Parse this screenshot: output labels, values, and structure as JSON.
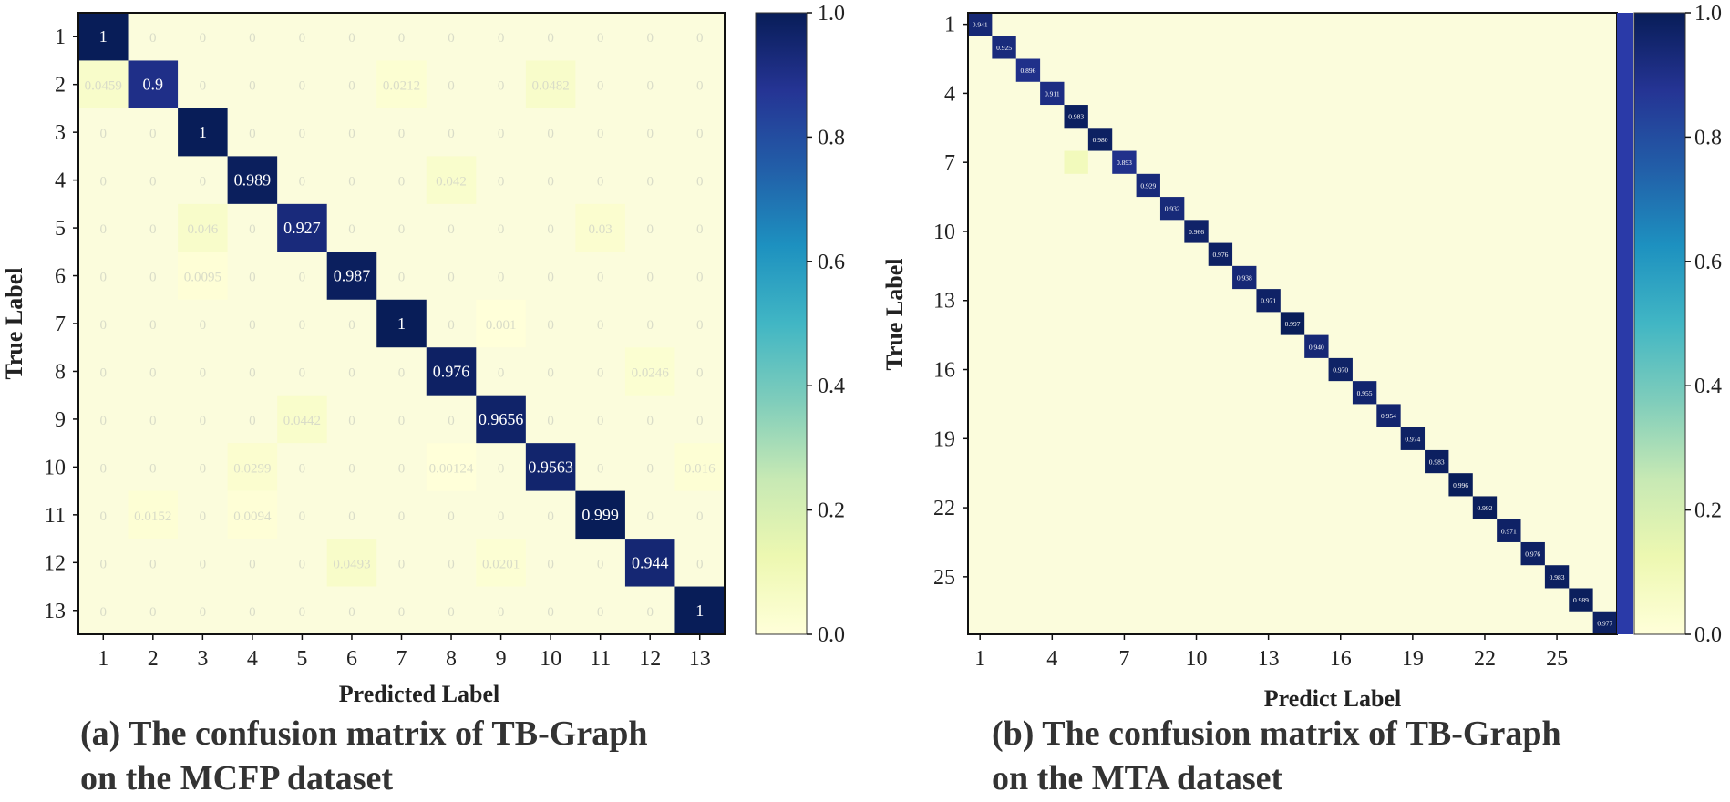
{
  "colors": {
    "low": "#fbfcdc",
    "scale": [
      "#ffffd9",
      "#edf8b1",
      "#c7e9b4",
      "#7fcdbb",
      "#41b6c4",
      "#1d91c0",
      "#225ea8",
      "#253494",
      "#081d58"
    ],
    "high_text": "#ffffff",
    "low_text": "#d9dcc8"
  },
  "chart_data": [
    {
      "type": "heatmap",
      "caption_line1": "(a) The confusion matrix of TB-Graph",
      "caption_line2": "on the MCFP dataset",
      "xlabel": "Predicted Label",
      "ylabel": "True Label",
      "x_ticks": [
        "1",
        "2",
        "3",
        "4",
        "5",
        "6",
        "7",
        "8",
        "9",
        "10",
        "11",
        "12",
        "13"
      ],
      "y_ticks": [
        "1",
        "2",
        "3",
        "4",
        "5",
        "6",
        "7",
        "8",
        "9",
        "10",
        "11",
        "12",
        "13"
      ],
      "colorbar_ticks": [
        "0.0",
        "0.2",
        "0.4",
        "0.6",
        "0.8",
        "1.0"
      ],
      "vmin": 0,
      "vmax": 1,
      "matrix": [
        [
          1,
          0,
          0,
          0,
          0,
          0,
          0,
          0,
          0,
          0,
          0,
          0,
          0
        ],
        [
          0.0459,
          0.9,
          0,
          0,
          0,
          0,
          0.0212,
          0,
          0,
          0.0482,
          0,
          0,
          0
        ],
        [
          0,
          0,
          1,
          0,
          0,
          0,
          0,
          0,
          0,
          0,
          0,
          0,
          0
        ],
        [
          0,
          0,
          0,
          0.989,
          0,
          0,
          0,
          0.042,
          0,
          0,
          0,
          0,
          0
        ],
        [
          0,
          0,
          0.046,
          0,
          0.927,
          0,
          0,
          0,
          0,
          0,
          0.03,
          0,
          0
        ],
        [
          0,
          0,
          0.0095,
          0,
          0,
          0.987,
          0,
          0,
          0,
          0,
          0,
          0,
          0
        ],
        [
          0,
          0,
          0,
          0,
          0,
          0,
          1,
          0,
          0.001,
          0,
          0,
          0,
          0
        ],
        [
          0,
          0,
          0,
          0,
          0,
          0,
          0,
          0.976,
          0,
          0,
          0,
          0.0246,
          0
        ],
        [
          0,
          0,
          0,
          0,
          0.0442,
          0,
          0,
          0,
          0.9656,
          0,
          0,
          0,
          0
        ],
        [
          0,
          0,
          0,
          0.0299,
          0,
          0,
          0,
          0.00124,
          0,
          0.9563,
          0,
          0,
          0.016
        ],
        [
          0,
          0.0152,
          0,
          0.0094,
          0,
          0,
          0,
          0,
          0,
          0,
          0.999,
          0,
          0
        ],
        [
          0,
          0,
          0,
          0,
          0,
          0.0493,
          0,
          0,
          0.0201,
          0,
          0,
          0.944,
          0
        ],
        [
          0,
          0,
          0,
          0,
          0,
          0,
          0,
          0,
          0,
          0,
          0,
          0,
          1
        ]
      ],
      "labels": [
        [
          "1",
          "0",
          "0",
          "0",
          "0",
          "0",
          "0",
          "0",
          "0",
          "0",
          "0",
          "0",
          "0"
        ],
        [
          "0.0459",
          "0.9",
          "0",
          "0",
          "0",
          "0",
          "0.0212",
          "0",
          "0",
          "0.0482",
          "0",
          "0",
          "0"
        ],
        [
          "0",
          "0",
          "1",
          "0",
          "0",
          "0",
          "0",
          "0",
          "0",
          "0",
          "0",
          "0",
          "0"
        ],
        [
          "0",
          "0",
          "0",
          "0.989",
          "0",
          "0",
          "0",
          "0.042",
          "0",
          "0",
          "0",
          "0",
          "0"
        ],
        [
          "0",
          "0",
          "0.046",
          "0",
          "0.927",
          "0",
          "0",
          "0",
          "0",
          "0",
          "0.03",
          "0",
          "0"
        ],
        [
          "0",
          "0",
          "0.0095",
          "0",
          "0",
          "0.987",
          "0",
          "0",
          "0",
          "0",
          "0",
          "0",
          "0"
        ],
        [
          "0",
          "0",
          "0",
          "0",
          "0",
          "0",
          "1",
          "0",
          "0.001",
          "0",
          "0",
          "0",
          "0"
        ],
        [
          "0",
          "0",
          "0",
          "0",
          "0",
          "0",
          "0",
          "0.976",
          "0",
          "0",
          "0",
          "0.0246",
          "0"
        ],
        [
          "0",
          "0",
          "0",
          "0",
          "0.0442",
          "0",
          "0",
          "0",
          "0.9656",
          "0",
          "0",
          "0",
          "0"
        ],
        [
          "0",
          "0",
          "0",
          "0.0299",
          "0",
          "0",
          "0",
          "0.00124",
          "0",
          "0.9563",
          "0",
          "0",
          "0.016"
        ],
        [
          "0",
          "0.0152",
          "0",
          "0.0094",
          "0",
          "0",
          "0",
          "0",
          "0",
          "0",
          "0.999",
          "0",
          "0"
        ],
        [
          "0",
          "0",
          "0",
          "0",
          "0",
          "0.0493",
          "0",
          "0",
          "0.0201",
          "0",
          "0",
          "0.944",
          "0"
        ],
        [
          "0",
          "0",
          "0",
          "0",
          "0",
          "0",
          "0",
          "0",
          "0",
          "0",
          "0",
          "0",
          "1"
        ]
      ]
    },
    {
      "type": "heatmap",
      "caption_line1": "(b) The confusion matrix of TB-Graph",
      "caption_line2": "on the MTA dataset",
      "xlabel": "Predict Label",
      "ylabel": "True Label",
      "n_classes": 27,
      "x_ticks": [
        "1",
        "4",
        "7",
        "10",
        "13",
        "16",
        "19",
        "22",
        "25"
      ],
      "y_ticks": [
        "1",
        "4",
        "7",
        "10",
        "13",
        "16",
        "19",
        "22",
        "25"
      ],
      "tick_classes": [
        1,
        4,
        7,
        10,
        13,
        16,
        19,
        22,
        25
      ],
      "colorbar_ticks": [
        "0.0",
        "0.2",
        "0.4",
        "0.6",
        "0.8",
        "1.0"
      ],
      "vmin": 0,
      "vmax": 1,
      "diagonal": [
        0.941,
        0.925,
        0.896,
        0.911,
        0.983,
        0.98,
        0.893,
        0.929,
        0.932,
        0.966,
        0.976,
        0.938,
        0.971,
        0.997,
        0.94,
        0.97,
        0.955,
        0.954,
        0.974,
        0.983,
        0.996,
        0.992,
        0.971,
        0.976,
        0.983,
        0.989,
        0.977
      ],
      "diagonal_labels": [
        "0.941",
        "0.925",
        "0.896",
        "0.911",
        "0.983",
        "0.980",
        "0.893",
        "0.929",
        "0.932",
        "0.966",
        "0.976",
        "0.938",
        "0.971",
        "0.997",
        "0.940",
        "0.970",
        "0.955",
        "0.954",
        "0.974",
        "0.983",
        "0.996",
        "0.992",
        "0.971",
        "0.976",
        "0.983",
        "0.989",
        "0.977"
      ],
      "off_diagonal": [
        {
          "row": 7,
          "col": 5,
          "value": 0.09
        }
      ]
    }
  ]
}
